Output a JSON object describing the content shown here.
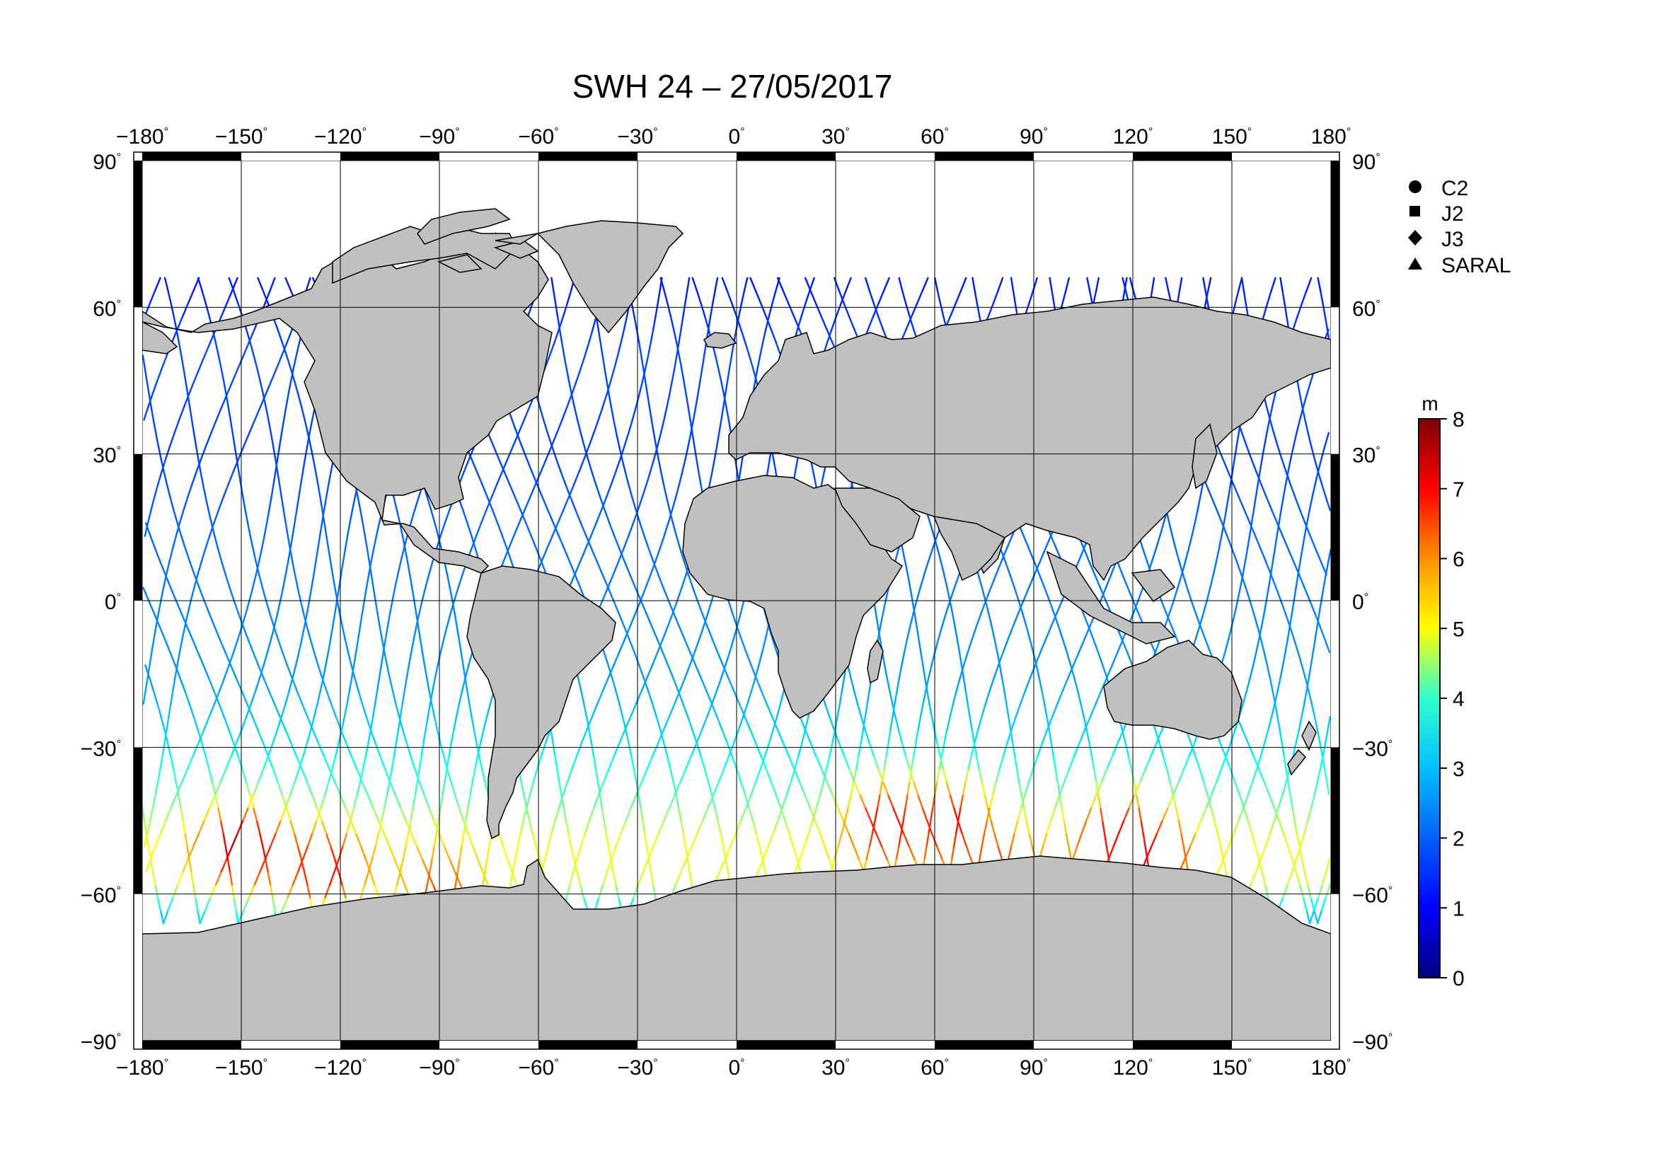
{
  "title": "SWH 24 – 27/05/2017",
  "map": {
    "projection": "equirectangular",
    "lon_range": [
      -180,
      180
    ],
    "lat_range": [
      -90,
      90
    ],
    "lon_ticks": [
      -180,
      -150,
      -120,
      -90,
      -60,
      -30,
      0,
      30,
      60,
      90,
      120,
      150,
      180
    ],
    "lat_ticks": [
      90,
      60,
      30,
      0,
      -30,
      -60,
      -90
    ],
    "degree_symbol": "°",
    "land_color": "#c0c0c0",
    "ocean_color": "#ffffff"
  },
  "legend": {
    "items": [
      {
        "label": "C2",
        "symbol": "circle"
      },
      {
        "label": "J2",
        "symbol": "square"
      },
      {
        "label": "J3",
        "symbol": "diamond"
      },
      {
        "label": "SARAL",
        "symbol": "triangle"
      }
    ]
  },
  "colorbar": {
    "unit": "m",
    "min": 0,
    "max": 8,
    "ticks": [
      8,
      7,
      6,
      5,
      4,
      3,
      2,
      1,
      0
    ],
    "colormap": [
      "#00007f",
      "#0000ff",
      "#007fff",
      "#00ffff",
      "#7fff7f",
      "#ffff00",
      "#ff7f00",
      "#ff0000",
      "#7f0000"
    ]
  },
  "chart_data": {
    "type": "map",
    "title": "SWH 24 – 27/05/2017",
    "variable": "SWH",
    "unit": "m",
    "color_range": [
      0,
      8
    ],
    "satellites": [
      "C2",
      "J2",
      "J3",
      "SARAL"
    ],
    "track_wave_height_by_latitude": [
      {
        "lat": 65,
        "swh": 1.2
      },
      {
        "lat": 50,
        "swh": 1.6
      },
      {
        "lat": 30,
        "swh": 1.5
      },
      {
        "lat": 15,
        "swh": 1.8
      },
      {
        "lat": 0,
        "swh": 2.0
      },
      {
        "lat": -15,
        "swh": 2.2
      },
      {
        "lat": -30,
        "swh": 2.8
      },
      {
        "lat": -40,
        "swh": 3.6
      },
      {
        "lat": -50,
        "swh": 5.0
      },
      {
        "lat": -58,
        "swh": 4.6
      },
      {
        "lat": -63,
        "swh": 2.6
      }
    ],
    "hotspots": [
      {
        "lon": -150,
        "lat": -50,
        "swh": 7.5
      },
      {
        "lon": -125,
        "lat": -55,
        "swh": 7.0
      },
      {
        "lon": -90,
        "lat": -60,
        "swh": 6.5
      },
      {
        "lon": 45,
        "lat": -45,
        "swh": 7.0
      },
      {
        "lon": 65,
        "lat": -45,
        "swh": 7.0
      },
      {
        "lon": 80,
        "lat": -55,
        "swh": 6.5
      },
      {
        "lon": 115,
        "lat": -48,
        "swh": 7.0
      },
      {
        "lon": 125,
        "lat": -52,
        "swh": 7.0
      }
    ]
  }
}
